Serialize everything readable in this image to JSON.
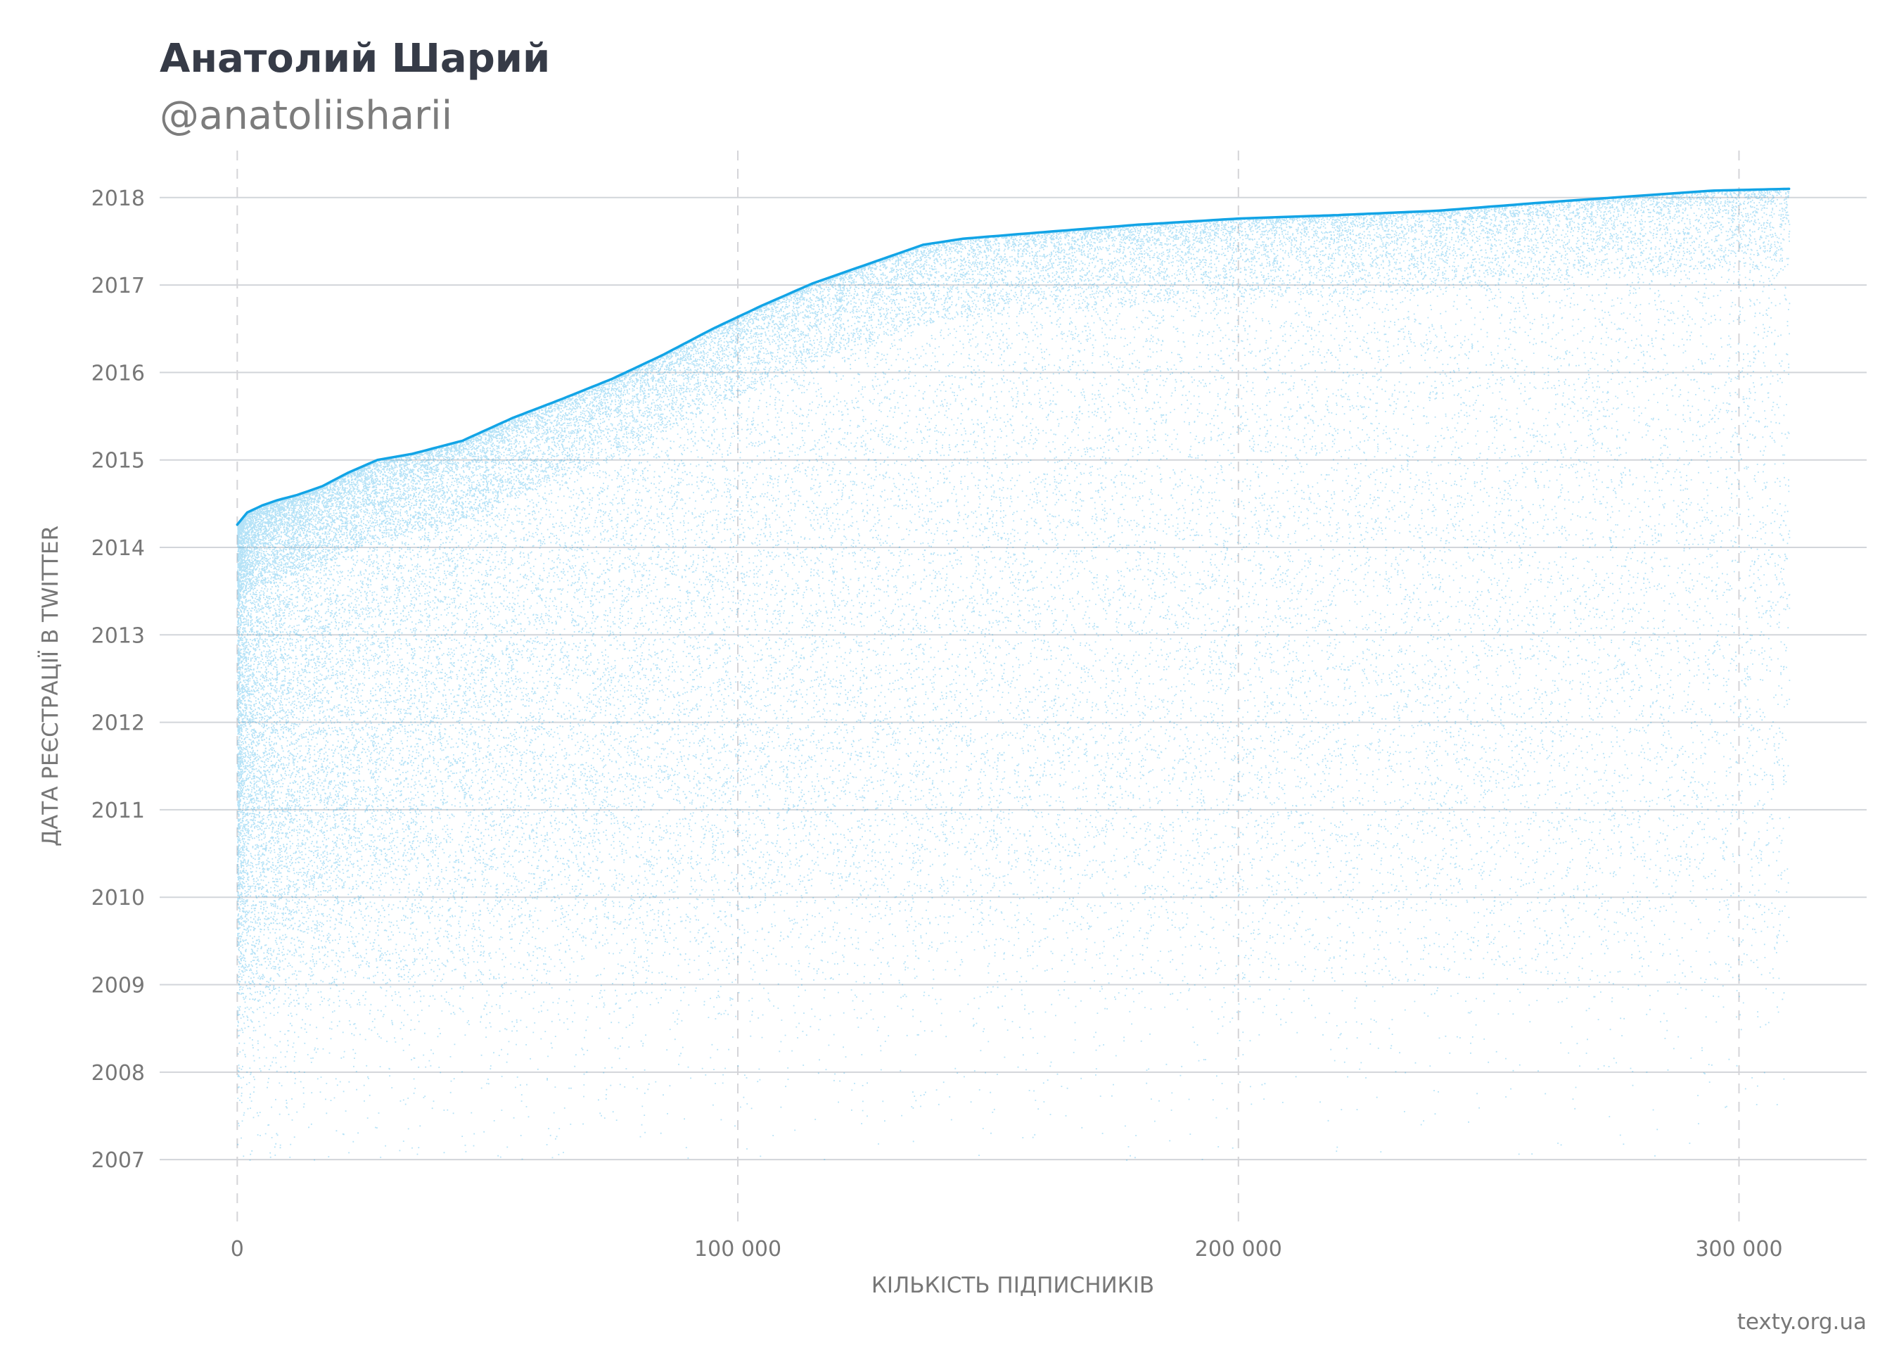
{
  "chart_data": {
    "type": "scatter",
    "title": "Анатолий Шарий",
    "subtitle": "@anatoliisharii",
    "xlabel": "КІЛЬКІСТЬ ПІДПИСНИКІВ",
    "ylabel": "ДАТА РЕЄСТРАЦІЇ В TWITTER",
    "source": "texty.org.ua",
    "x_ticks": [
      {
        "value": 0,
        "label": "0"
      },
      {
        "value": 100000,
        "label": "100 000"
      },
      {
        "value": 200000,
        "label": "200 000"
      },
      {
        "value": 300000,
        "label": "300 000"
      }
    ],
    "y_ticks": [
      {
        "value": 2007,
        "label": "2007"
      },
      {
        "value": 2008,
        "label": "2008"
      },
      {
        "value": 2009,
        "label": "2009"
      },
      {
        "value": 2010,
        "label": "2010"
      },
      {
        "value": 2011,
        "label": "2011"
      },
      {
        "value": 2012,
        "label": "2012"
      },
      {
        "value": 2013,
        "label": "2013"
      },
      {
        "value": 2014,
        "label": "2014"
      },
      {
        "value": 2015,
        "label": "2015"
      },
      {
        "value": 2016,
        "label": "2016"
      },
      {
        "value": 2017,
        "label": "2017"
      },
      {
        "value": 2018,
        "label": "2018"
      }
    ],
    "xlim": [
      -15500,
      325500
    ],
    "ylim": [
      2006.1,
      2018.65
    ],
    "grid": "horizontal solid, vertical dashed",
    "point_color": "#1aa7e6",
    "frontier_color": "#12a4e6",
    "followers_total": 310000,
    "registration_frontier": [
      [
        0,
        2014.26
      ],
      [
        2000,
        2014.4
      ],
      [
        5000,
        2014.48
      ],
      [
        8000,
        2014.54
      ],
      [
        12000,
        2014.6
      ],
      [
        17000,
        2014.7
      ],
      [
        22000,
        2014.85
      ],
      [
        28000,
        2015.0
      ],
      [
        35000,
        2015.07
      ],
      [
        45000,
        2015.22
      ],
      [
        55000,
        2015.48
      ],
      [
        65000,
        2015.7
      ],
      [
        75000,
        2015.93
      ],
      [
        85000,
        2016.2
      ],
      [
        95000,
        2016.5
      ],
      [
        105000,
        2016.77
      ],
      [
        115000,
        2017.02
      ],
      [
        125000,
        2017.22
      ],
      [
        137000,
        2017.46
      ],
      [
        145000,
        2017.53
      ],
      [
        160000,
        2017.6
      ],
      [
        180000,
        2017.69
      ],
      [
        200000,
        2017.76
      ],
      [
        220000,
        2017.8
      ],
      [
        240000,
        2017.85
      ],
      [
        260000,
        2017.94
      ],
      [
        280000,
        2018.02
      ],
      [
        295000,
        2018.08
      ],
      [
        310000,
        2018.1
      ]
    ],
    "point_density_by_year": [
      {
        "year": 2007.3,
        "weight": 0.05
      },
      {
        "year": 2008.5,
        "weight": 0.15
      },
      {
        "year": 2009.5,
        "weight": 0.55
      },
      {
        "year": 2010.5,
        "weight": 0.85
      },
      {
        "year": 2011.5,
        "weight": 1.0
      },
      {
        "year": 2012.5,
        "weight": 1.0
      },
      {
        "year": 2013.5,
        "weight": 1.0
      },
      {
        "year": 2014.5,
        "weight": 1.0
      },
      {
        "year": 2015.5,
        "weight": 0.95
      },
      {
        "year": 2016.5,
        "weight": 0.95
      },
      {
        "year": 2017.5,
        "weight": 1.0
      }
    ]
  }
}
